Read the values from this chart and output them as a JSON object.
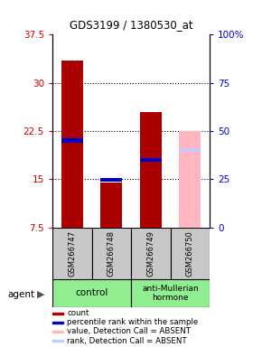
{
  "title": "GDS3199 / 1380530_at",
  "samples": [
    "GSM266747",
    "GSM266748",
    "GSM266749",
    "GSM266750"
  ],
  "ylim_left": [
    7.5,
    37.5
  ],
  "ylim_right": [
    0,
    100
  ],
  "yticks_left": [
    7.5,
    15.0,
    22.5,
    30.0,
    37.5
  ],
  "yticks_right": [
    0,
    25,
    50,
    75,
    100
  ],
  "ytick_labels_left": [
    "7.5",
    "15",
    "22.5",
    "30",
    "37.5"
  ],
  "ytick_labels_right": [
    "0",
    "25",
    "50",
    "75",
    "100%"
  ],
  "count_values": [
    33.5,
    14.5,
    25.5,
    null
  ],
  "count_color": "#AA0000",
  "rank_values": [
    21.0,
    14.9,
    18.0,
    null
  ],
  "rank_color": "#0000CC",
  "count_absent_values": [
    null,
    null,
    null,
    22.5
  ],
  "count_absent_color": "#FFB6C1",
  "rank_absent_values": [
    null,
    null,
    null,
    19.5
  ],
  "rank_absent_color": "#C8C8FF",
  "left_label_color": "#CC0000",
  "right_label_color": "#0000CC",
  "legend_items": [
    {
      "label": "count",
      "color": "#AA0000"
    },
    {
      "label": "percentile rank within the sample",
      "color": "#0000CC"
    },
    {
      "label": "value, Detection Call = ABSENT",
      "color": "#FFB6C1"
    },
    {
      "label": "rank, Detection Call = ABSENT",
      "color": "#C8C8FF"
    }
  ]
}
